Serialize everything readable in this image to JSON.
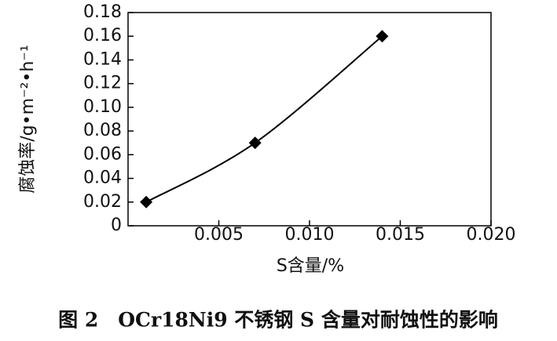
{
  "chart_data": {
    "type": "line",
    "y_label": "腐蚀率/g•m⁻²•h⁻¹",
    "x_label": "S含量/%",
    "caption": "图 2　OCr18Ni9 不锈钢 S 含量对耐蚀性的影响",
    "x": [
      0.001,
      0.007,
      0.014
    ],
    "series": [
      {
        "color": "#000000",
        "values": [
          0.02,
          0.07,
          0.16
        ]
      }
    ],
    "xlim": [
      0,
      0.02
    ],
    "xticks": [
      0.005,
      {
        "value": 0.01,
        "label": "0.010"
      },
      0.015,
      {
        "value": 0.02,
        "label": "0.020"
      }
    ],
    "ylim": [
      0,
      0.18
    ],
    "yticks": [
      0,
      0.02,
      0.04,
      0.06,
      0.08,
      {
        "value": 0.1,
        "label": "0.10"
      },
      0.12,
      0.14,
      0.16,
      0.18
    ],
    "grid": false
  }
}
